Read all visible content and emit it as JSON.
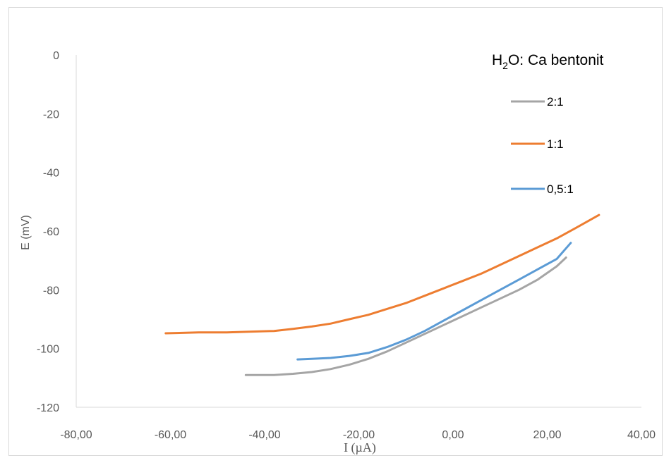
{
  "chart_data": {
    "type": "line",
    "title": "",
    "xlabel": "I (µA)",
    "ylabel": "E (mV)",
    "xlim": [
      -80,
      40
    ],
    "ylim": [
      -120,
      0
    ],
    "x_ticks": [
      "-80,00",
      "-60,00",
      "-40,00",
      "-20,00",
      "0,00",
      "20,00",
      "40,00"
    ],
    "y_ticks": [
      "0",
      "-20",
      "-40",
      "-60",
      "-80",
      "-100",
      "-120"
    ],
    "legend": {
      "title_main": "H",
      "title_sub": "2",
      "title_rest": "O: Ca bentonit",
      "placement": "top-right"
    },
    "series": [
      {
        "name": "2:1",
        "color": "#a5a5a5",
        "points": [
          [
            -44,
            -109
          ],
          [
            -38,
            -109
          ],
          [
            -34,
            -108.6
          ],
          [
            -30,
            -108
          ],
          [
            -26,
            -107
          ],
          [
            -22,
            -105.5
          ],
          [
            -18,
            -103.5
          ],
          [
            -14,
            -101
          ],
          [
            -10,
            -98
          ],
          [
            -6,
            -95
          ],
          [
            -2,
            -92
          ],
          [
            2,
            -89
          ],
          [
            6,
            -86
          ],
          [
            10,
            -83
          ],
          [
            14,
            -80
          ],
          [
            18,
            -76.5
          ],
          [
            22,
            -72
          ],
          [
            24,
            -69
          ]
        ]
      },
      {
        "name": "1:1",
        "color": "#ed7d31",
        "points": [
          [
            -61,
            -94.8
          ],
          [
            -54,
            -94.5
          ],
          [
            -48,
            -94.5
          ],
          [
            -42,
            -94.2
          ],
          [
            -38,
            -94
          ],
          [
            -34,
            -93.3
          ],
          [
            -30,
            -92.5
          ],
          [
            -26,
            -91.5
          ],
          [
            -22,
            -90
          ],
          [
            -18,
            -88.5
          ],
          [
            -14,
            -86.5
          ],
          [
            -10,
            -84.5
          ],
          [
            -6,
            -82
          ],
          [
            -2,
            -79.5
          ],
          [
            2,
            -77
          ],
          [
            6,
            -74.5
          ],
          [
            10,
            -71.5
          ],
          [
            14,
            -68.5
          ],
          [
            18,
            -65.5
          ],
          [
            22,
            -62.5
          ],
          [
            26,
            -59
          ],
          [
            31,
            -54.5
          ]
        ]
      },
      {
        "name": "0,5:1",
        "color": "#5b9bd5",
        "points": [
          [
            -33,
            -103.7
          ],
          [
            -30,
            -103.5
          ],
          [
            -26,
            -103.2
          ],
          [
            -22,
            -102.5
          ],
          [
            -18,
            -101.5
          ],
          [
            -14,
            -99.5
          ],
          [
            -10,
            -97
          ],
          [
            -6,
            -94
          ],
          [
            -2,
            -90.5
          ],
          [
            2,
            -87
          ],
          [
            6,
            -83.5
          ],
          [
            10,
            -80
          ],
          [
            14,
            -76.5
          ],
          [
            18,
            -73
          ],
          [
            22,
            -69.5
          ],
          [
            25,
            -64
          ]
        ]
      }
    ]
  }
}
